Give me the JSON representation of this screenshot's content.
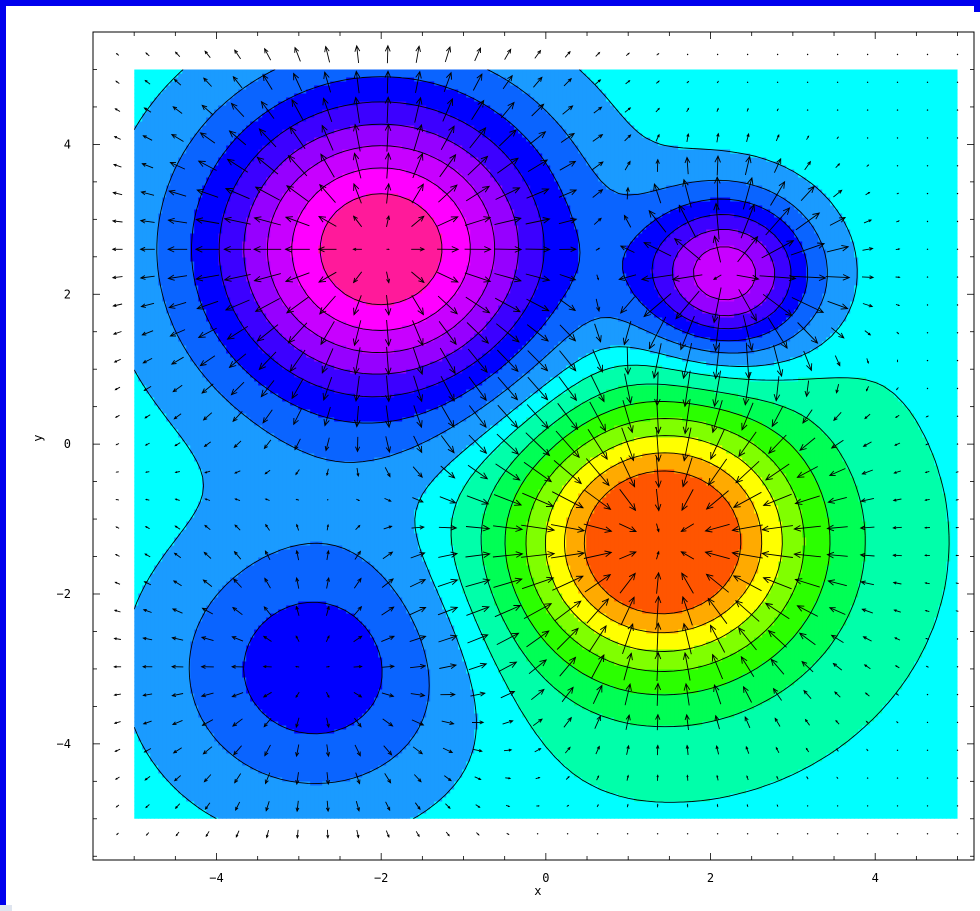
{
  "chart_data": {
    "type": "contour",
    "subtype": "filled contour with gradient vector field",
    "xlabel": "x",
    "ylabel": "y",
    "xlim": [
      -5,
      5
    ],
    "ylim": [
      -5,
      5
    ],
    "axis_range": {
      "x": [
        -5.5,
        5.2
      ],
      "y": [
        -5.55,
        5.5
      ]
    },
    "x_ticks": [
      -4,
      -2,
      0,
      2,
      4
    ],
    "y_ticks": [
      -4,
      -2,
      0,
      2,
      4
    ],
    "grid": false,
    "legend": "none",
    "field": {
      "baseline": 0.5,
      "components": [
        {
          "center": [
            -2.0,
            2.6
          ],
          "amplitude": -2.6,
          "sigma": 1.5
        },
        {
          "center": [
            2.2,
            2.25
          ],
          "amplitude": -1.9,
          "sigma": 0.75
        },
        {
          "center": [
            1.4,
            -1.3
          ],
          "amplitude": 2.5,
          "sigma": 1.25
        },
        {
          "center": [
            -2.8,
            -3.0
          ],
          "amplitude": -1.0,
          "sigma": 1.3
        }
      ]
    },
    "contour_levels": [
      -2.1,
      -1.8,
      -1.5,
      -1.2,
      -0.9,
      -0.6,
      -0.3,
      0.0,
      0.3,
      0.55,
      0.85,
      1.15,
      1.45,
      1.75,
      2.05,
      2.35
    ],
    "colormap": [
      "#ff0040",
      "#ff1a9a",
      "#ff00ff",
      "#c800ff",
      "#9600ff",
      "#3c00ff",
      "#0000ff",
      "#0a64ff",
      "#1a9bff",
      "#00ffff",
      "#00ffaa",
      "#00ff55",
      "#2bff00",
      "#80ff00",
      "#ffff00",
      "#ffaa00",
      "#ff5500",
      "#ff0000"
    ],
    "arrow_grid": {
      "x_range": [
        -5.2,
        5.0
      ],
      "y_range": [
        -5.2,
        5.2
      ],
      "count": 29,
      "color": "#000000"
    }
  }
}
